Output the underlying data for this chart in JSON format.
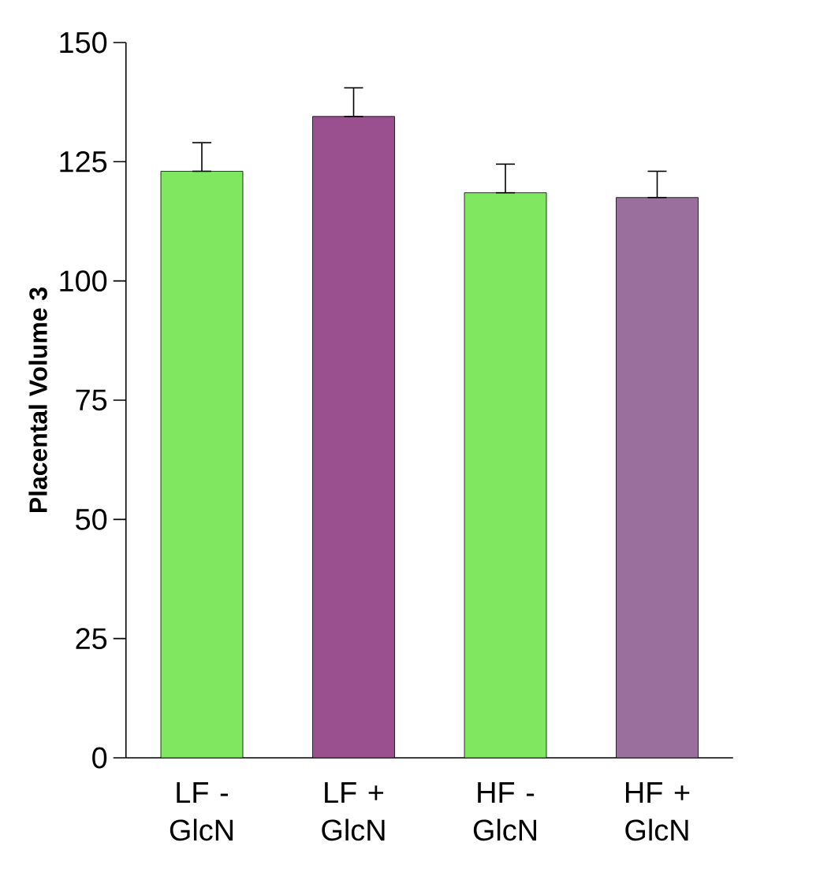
{
  "chart_data": {
    "type": "bar",
    "ylabel": "Placental Volume 3",
    "categories": [
      "LF - GlcN",
      "LF + GlcN",
      "HF - GlcN",
      "HF + GlcN"
    ],
    "values": [
      123,
      134.5,
      118.5,
      117.5
    ],
    "errors": [
      [
        123,
        129
      ],
      [
        134.5,
        140.5
      ],
      [
        118.5,
        124.5
      ],
      [
        117.5,
        123
      ]
    ],
    "colors": [
      "#7fe860",
      "#9a4f8e",
      "#7fe860",
      "#9a6f9e"
    ],
    "ylim": [
      0,
      150
    ],
    "yticks": [
      0,
      25,
      50,
      75,
      100,
      125,
      150
    ],
    "grid": false
  }
}
